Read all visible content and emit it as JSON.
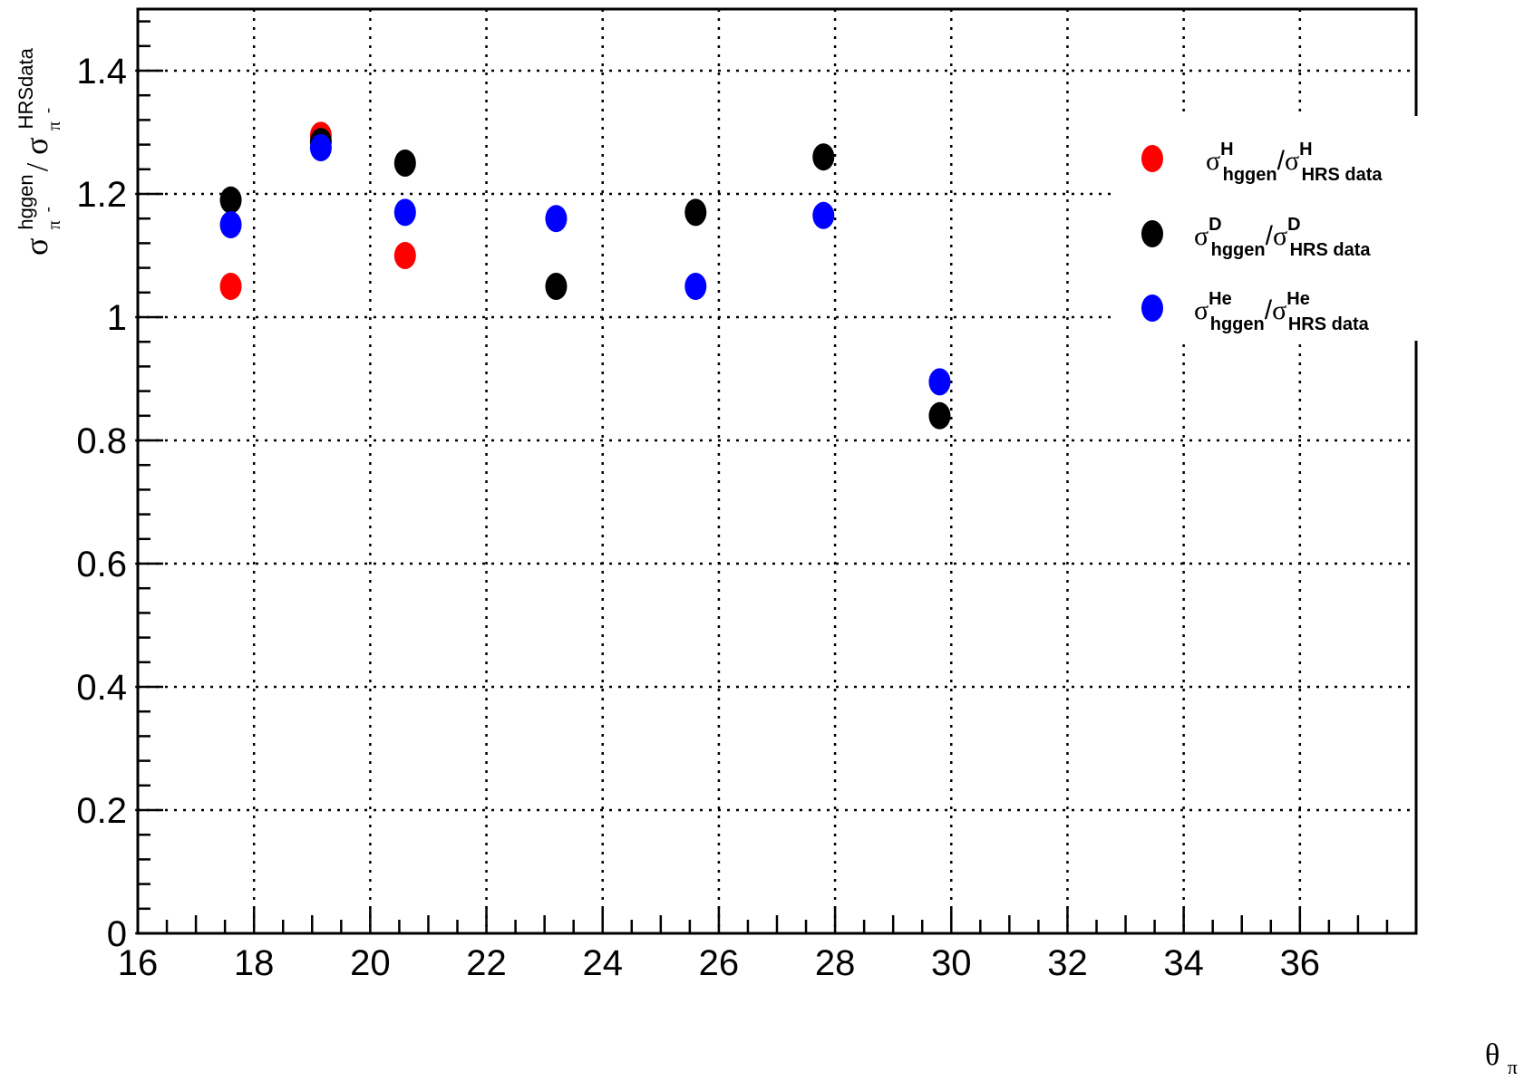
{
  "chart_data": {
    "type": "scatter",
    "title": "",
    "xlabel": {
      "base": "θ",
      "sub": "π",
      "sup": "-"
    },
    "ylabel": {
      "num_base": "σ",
      "num_sup": "hggen",
      "num_sub": "π",
      "den_base": "σ",
      "den_sup": "HRSdata",
      "den_sub": "π",
      "charge": "-"
    },
    "xlim": [
      16,
      38
    ],
    "ylim": [
      0,
      1.5
    ],
    "xticks": [
      "16",
      "18",
      "20",
      "22",
      "24",
      "26",
      "28",
      "30",
      "32",
      "34",
      "36"
    ],
    "yticks": [
      "0",
      "0.2",
      "0.4",
      "0.6",
      "0.8",
      "1",
      "1.2",
      "1.4"
    ],
    "grid": true,
    "legend_position": "top-right",
    "series": [
      {
        "name": "σ^H_hggen/σ^H_HRS data",
        "legend": {
          "target": "H"
        },
        "color": "#ff0000",
        "x": [
          17.6,
          19.15,
          20.6
        ],
        "y": [
          1.05,
          1.295,
          1.1
        ]
      },
      {
        "name": "σ^D_hggen/σ^D_HRS data",
        "legend": {
          "target": "D"
        },
        "color": "#000000",
        "x": [
          17.6,
          19.15,
          20.6,
          23.2,
          25.6,
          27.8,
          29.8
        ],
        "y": [
          1.19,
          1.285,
          1.25,
          1.05,
          1.17,
          1.26,
          0.84
        ]
      },
      {
        "name": "σ^He_hggen/σ^He_HRS data",
        "legend": {
          "target": "He"
        },
        "color": "#0000ff",
        "x": [
          17.6,
          19.15,
          20.6,
          23.2,
          25.6,
          27.8,
          29.8
        ],
        "y": [
          1.15,
          1.275,
          1.17,
          1.16,
          1.05,
          1.165,
          0.895
        ]
      }
    ],
    "legend_labels": {
      "sigma": "σ",
      "hggen": "hggen",
      "hrs": "HRS data",
      "slash": "/"
    }
  }
}
